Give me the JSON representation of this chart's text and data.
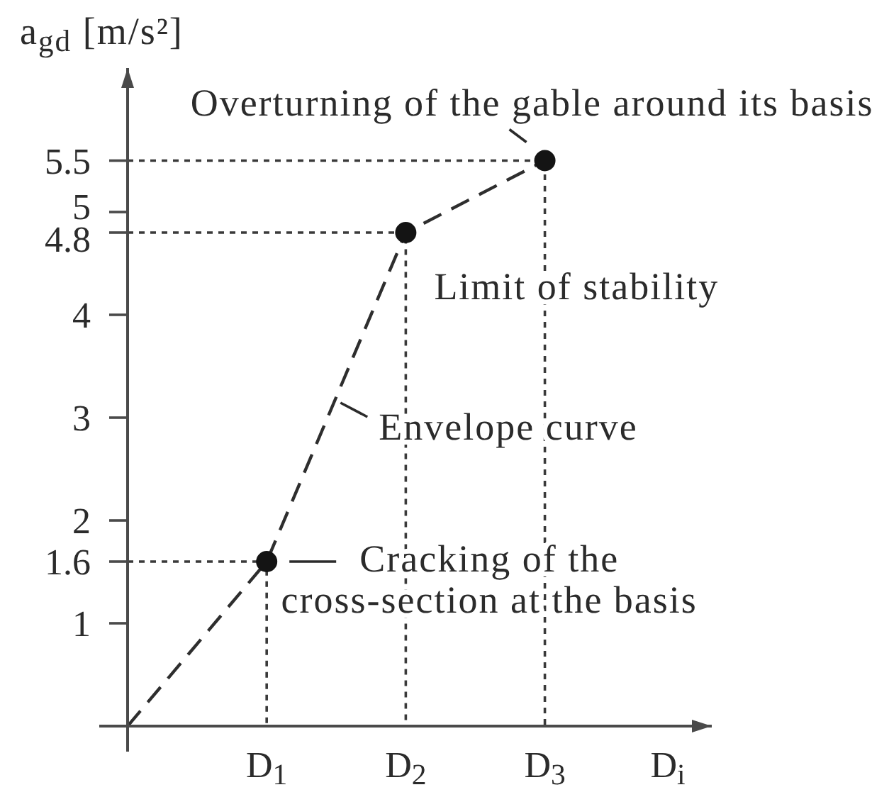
{
  "chart_data": {
    "type": "line",
    "ylabel": "a$_{gd}$ [m/s²]",
    "xlabel": "D$_{i}$",
    "xlim": [
      0,
      4.2
    ],
    "xticks": [
      {
        "value": 1,
        "label": "D$_{1}$"
      },
      {
        "value": 2,
        "label": "D$_{2}$"
      },
      {
        "value": 3,
        "label": "D$_{3}$"
      }
    ],
    "ylim": [
      0,
      6.4
    ],
    "yticks": [
      1,
      1.6,
      2,
      3,
      4,
      4.8,
      5,
      5.5
    ],
    "series": [
      {
        "type": "line",
        "x": [
          0,
          1,
          1
        ],
        "values": [
          1.6,
          1.6,
          0
        ],
        "color": "#3a3a3a",
        "line_style": "dotted",
        "marker": "none"
      },
      {
        "type": "line",
        "x": [
          0,
          2,
          2
        ],
        "values": [
          4.8,
          4.8,
          0
        ],
        "color": "#3a3a3a",
        "line_style": "dotted",
        "marker": "none"
      },
      {
        "type": "line",
        "x": [
          0,
          3,
          3
        ],
        "values": [
          5.5,
          5.5,
          0
        ],
        "color": "#3a3a3a",
        "line_style": "dotted",
        "marker": "none"
      },
      {
        "x": [
          0,
          1,
          2,
          3
        ],
        "values": [
          0,
          1.6,
          4.8,
          5.5
        ],
        "color": "#2e2e2e",
        "line_style": "dashed",
        "marker": "none"
      },
      {
        "type": "scatter",
        "x": [
          1,
          2,
          3
        ],
        "values": [
          1.6,
          4.8,
          5.5
        ],
        "color": "#141414",
        "marker": "circle"
      }
    ],
    "annotations": [
      {
        "text": "Overturning of the gable around its basis",
        "x": 3,
        "y": 5.5
      },
      {
        "text": "Limit of stability",
        "x": 2,
        "y": 4.8
      },
      {
        "text": "Envelope curve",
        "x": 1.5,
        "y": 3.2
      },
      {
        "text": "Cracking of the\ncross-section at the basis",
        "x": 1,
        "y": 1.6
      }
    ]
  }
}
